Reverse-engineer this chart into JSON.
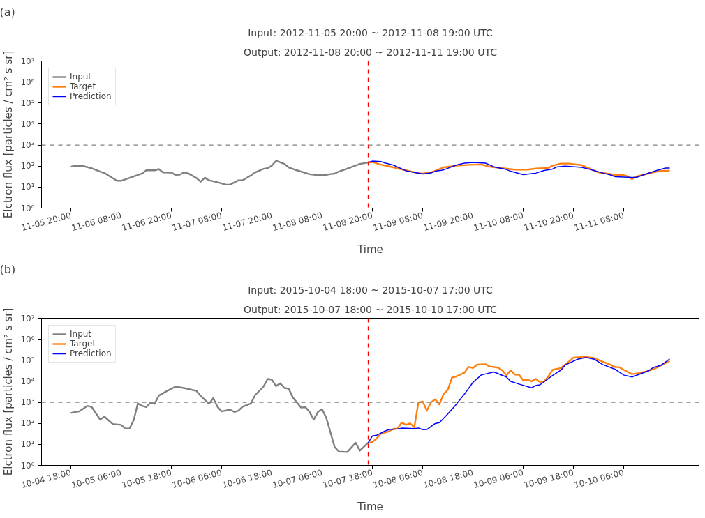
{
  "chart_data": [
    {
      "type": "line",
      "title": "Input: 2012-11-05 20:00 ~ 2012-11-08 19:00 UTC",
      "subtitle": "Output: 2012-11-08 20:00 ~ 2012-11-11 19:00 UTC",
      "xlabel": "Time",
      "ylabel": "Elctron flux [particles / cm² s sr]",
      "annotations": [
        "(a)"
      ],
      "log": "y",
      "legend": "top left",
      "grid": false,
      "line_style": "solid",
      "xlim": [
        "2012-11-05T13:00",
        "2012-11-12T02:00"
      ],
      "xticks": [
        {
          "value": "2012-11-05T20:00",
          "label": "11-05 20:00"
        },
        {
          "value": "2012-11-06T08:00",
          "label": "11-06 08:00"
        },
        {
          "value": "2012-11-06T20:00",
          "label": "11-06 20:00"
        },
        {
          "value": "2012-11-07T08:00",
          "label": "11-07 08:00"
        },
        {
          "value": "2012-11-07T20:00",
          "label": "11-07 20:00"
        },
        {
          "value": "2012-11-08T08:00",
          "label": "11-08 08:00"
        },
        {
          "value": "2012-11-08T20:00",
          "label": "11-08 20:00"
        },
        {
          "value": "2012-11-09T08:00",
          "label": "11-09 08:00"
        },
        {
          "value": "2012-11-09T20:00",
          "label": "11-09 20:00"
        },
        {
          "value": "2012-11-10T08:00",
          "label": "11-10 08:00"
        },
        {
          "value": "2012-11-10T20:00",
          "label": "11-10 20:00"
        },
        {
          "value": "2012-11-11T08:00",
          "label": "11-11 08:00"
        }
      ],
      "ylim": [
        1,
        10000000
      ],
      "yticks": [
        {
          "value": 1,
          "label": "10⁰"
        },
        {
          "value": 10,
          "label": "10¹"
        },
        {
          "value": 100,
          "label": "10²"
        },
        {
          "value": 1000,
          "label": "10³"
        },
        {
          "value": 10000,
          "label": "10⁴"
        },
        {
          "value": 100000,
          "label": "10⁵"
        },
        {
          "value": 1000000,
          "label": "10⁶"
        },
        {
          "value": 10000000,
          "label": "10⁷"
        }
      ],
      "ref_lines": [
        {
          "axis": "x",
          "value": "2012-11-08T19:00",
          "color": "#ff0000",
          "line_style": "dashed"
        },
        {
          "axis": "y",
          "value": 1000,
          "color": "#808080",
          "line_style": "dashed"
        }
      ],
      "series": [
        {
          "name": "Input",
          "color": "#808080",
          "x": [
            "2012-11-05T20:00",
            "2012-11-05T21:00",
            "2012-11-05T23:00",
            "2012-11-06T01:00",
            "2012-11-06T03:00",
            "2012-11-06T04:00",
            "2012-11-06T07:00",
            "2012-11-06T08:00",
            "2012-11-06T13:00",
            "2012-11-06T14:00",
            "2012-11-06T16:00",
            "2012-11-06T17:00",
            "2012-11-06T18:00",
            "2012-11-06T20:00",
            "2012-11-06T21:00",
            "2012-11-06T22:00",
            "2012-11-06T23:00",
            "2012-11-07T00:00",
            "2012-11-07T02:00",
            "2012-11-07T03:00",
            "2012-11-07T04:00",
            "2012-11-07T05:00",
            "2012-11-07T07:00",
            "2012-11-07T09:00",
            "2012-11-07T10:00",
            "2012-11-07T12:00",
            "2012-11-07T13:00",
            "2012-11-07T15:00",
            "2012-11-07T16:00",
            "2012-11-07T18:00",
            "2012-11-07T19:00",
            "2012-11-07T20:00",
            "2012-11-07T21:00",
            "2012-11-07T23:00",
            "2012-11-08T00:00",
            "2012-11-08T02:00",
            "2012-11-08T05:00",
            "2012-11-08T07:00",
            "2012-11-08T09:00",
            "2012-11-08T10:00",
            "2012-11-08T11:00",
            "2012-11-08T12:00",
            "2012-11-08T15:00",
            "2012-11-08T17:00",
            "2012-11-08T19:00"
          ],
          "values": [
            93,
            104,
            100,
            79,
            55,
            47,
            20,
            20,
            44,
            63,
            63,
            72,
            50,
            49,
            38,
            39,
            50,
            45,
            27,
            18,
            28,
            21,
            17,
            13,
            13,
            21,
            21,
            36,
            50,
            74,
            79,
            105,
            178,
            126,
            87,
            63,
            41,
            37,
            38,
            42,
            44,
            55,
            89,
            126,
            148
          ]
        },
        {
          "name": "Target",
          "color": "#ff7f0e",
          "x": [
            "2012-11-08T19:00",
            "2012-11-08T20:00",
            "2012-11-08T22:00",
            "2012-11-09T01:00",
            "2012-11-09T04:00",
            "2012-11-09T07:00",
            "2012-11-09T08:00",
            "2012-11-09T10:00",
            "2012-11-09T13:00",
            "2012-11-09T16:00",
            "2012-11-09T19:00",
            "2012-11-09T22:00",
            "2012-11-10T00:00",
            "2012-11-10T03:00",
            "2012-11-10T06:00",
            "2012-11-10T09:00",
            "2012-11-10T11:00",
            "2012-11-10T14:00",
            "2012-11-10T15:00",
            "2012-11-10T17:00",
            "2012-11-10T19:00",
            "2012-11-10T22:00",
            "2012-11-11T00:00",
            "2012-11-11T02:00",
            "2012-11-11T05:00",
            "2012-11-11T06:00",
            "2012-11-11T08:00",
            "2012-11-11T09:00",
            "2012-11-11T10:00",
            "2012-11-11T11:00",
            "2012-11-11T13:00",
            "2012-11-11T15:00",
            "2012-11-11T17:00",
            "2012-11-11T19:00"
          ],
          "values": [
            148,
            155,
            117,
            87,
            63,
            46,
            44,
            50,
            87,
            105,
            115,
            120,
            93,
            79,
            68,
            68,
            76,
            81,
            105,
            132,
            132,
            110,
            74,
            50,
            42,
            37,
            37,
            32,
            24,
            32,
            40,
            50,
            60,
            60
          ]
        },
        {
          "name": "Prediction",
          "color": "#0000ff",
          "x": [
            "2012-11-08T19:00",
            "2012-11-08T20:00",
            "2012-11-08T22:00",
            "2012-11-08T23:00",
            "2012-11-09T01:00",
            "2012-11-09T04:00",
            "2012-11-09T06:00",
            "2012-11-09T08:00",
            "2012-11-09T10:00",
            "2012-11-09T11:00",
            "2012-11-09T13:00",
            "2012-11-09T16:00",
            "2012-11-09T18:00",
            "2012-11-09T20:00",
            "2012-11-09T23:00",
            "2012-11-10T01:00",
            "2012-11-10T04:00",
            "2012-11-10T05:00",
            "2012-11-10T08:00",
            "2012-11-10T11:00",
            "2012-11-10T13:00",
            "2012-11-10T15:00",
            "2012-11-10T16:00",
            "2012-11-10T18:00",
            "2012-11-10T22:00",
            "2012-11-11T00:00",
            "2012-11-11T03:00",
            "2012-11-11T05:00",
            "2012-11-11T06:00",
            "2012-11-11T10:00",
            "2012-11-11T11:00",
            "2012-11-11T13:00",
            "2012-11-11T16:00",
            "2012-11-11T18:00",
            "2012-11-11T19:00"
          ],
          "values": [
            148,
            172,
            165,
            141,
            112,
            60,
            50,
            42,
            47,
            57,
            66,
            112,
            138,
            148,
            138,
            93,
            69,
            57,
            39,
            46,
            62,
            72,
            91,
            100,
            87,
            69,
            47,
            37,
            31,
            29,
            29,
            40,
            63,
            81,
            81
          ]
        }
      ]
    },
    {
      "type": "line",
      "title": "Input: 2015-10-04 18:00 ~ 2015-10-07 17:00 UTC",
      "subtitle": "Output: 2015-10-07 18:00 ~ 2015-10-10 17:00 UTC",
      "xlabel": "Time",
      "ylabel": "Elctron flux [particles / cm² s sr]",
      "annotations": [
        "(b)"
      ],
      "log": "y",
      "legend": "top left",
      "grid": false,
      "line_style": "solid",
      "xlim": [
        "2015-10-04T11:00",
        "2015-10-11T00:00"
      ],
      "xticks": [
        {
          "value": "2015-10-04T18:00",
          "label": "10-04 18:00"
        },
        {
          "value": "2015-10-05T06:00",
          "label": "10-05 06:00"
        },
        {
          "value": "2015-10-05T18:00",
          "label": "10-05 18:00"
        },
        {
          "value": "2015-10-06T06:00",
          "label": "10-06 06:00"
        },
        {
          "value": "2015-10-06T18:00",
          "label": "10-06 18:00"
        },
        {
          "value": "2015-10-07T06:00",
          "label": "10-07 06:00"
        },
        {
          "value": "2015-10-07T18:00",
          "label": "10-07 18:00"
        },
        {
          "value": "2015-10-08T06:00",
          "label": "10-08 06:00"
        },
        {
          "value": "2015-10-08T18:00",
          "label": "10-08 18:00"
        },
        {
          "value": "2015-10-09T06:00",
          "label": "10-09 06:00"
        },
        {
          "value": "2015-10-09T18:00",
          "label": "10-09 18:00"
        },
        {
          "value": "2015-10-10T06:00",
          "label": "10-10 06:00"
        }
      ],
      "ylim": [
        1,
        10000000
      ],
      "yticks": [
        {
          "value": 1,
          "label": "10⁰"
        },
        {
          "value": 10,
          "label": "10¹"
        },
        {
          "value": 100,
          "label": "10²"
        },
        {
          "value": 1000,
          "label": "10³"
        },
        {
          "value": 10000,
          "label": "10⁴"
        },
        {
          "value": 100000,
          "label": "10⁵"
        },
        {
          "value": 1000000,
          "label": "10⁶"
        },
        {
          "value": 10000000,
          "label": "10⁷"
        }
      ],
      "ref_lines": [
        {
          "axis": "x",
          "value": "2015-10-07T17:00",
          "color": "#ff0000",
          "line_style": "dashed"
        },
        {
          "axis": "y",
          "value": 1000,
          "color": "#808080",
          "line_style": "dashed"
        }
      ],
      "series": [
        {
          "name": "Input",
          "color": "#808080",
          "x": [
            "2015-10-04T18:00",
            "2015-10-04T19:00",
            "2015-10-04T20:00",
            "2015-10-04T22:00",
            "2015-10-04T23:00",
            "2015-10-05T01:00",
            "2015-10-05T02:00",
            "2015-10-05T04:00",
            "2015-10-05T06:00",
            "2015-10-05T07:00",
            "2015-10-05T08:00",
            "2015-10-05T09:00",
            "2015-10-05T10:00",
            "2015-10-05T11:00",
            "2015-10-05T12:00",
            "2015-10-05T13:00",
            "2015-10-05T14:00",
            "2015-10-05T15:00",
            "2015-10-05T17:00",
            "2015-10-05T19:00",
            "2015-10-05T21:00",
            "2015-10-06T00:00",
            "2015-10-06T01:00",
            "2015-10-06T03:00",
            "2015-10-06T04:00",
            "2015-10-06T05:00",
            "2015-10-06T06:00",
            "2015-10-06T08:00",
            "2015-10-06T09:00",
            "2015-10-06T10:00",
            "2015-10-06T11:00",
            "2015-10-06T13:00",
            "2015-10-06T14:00",
            "2015-10-06T16:00",
            "2015-10-06T17:00",
            "2015-10-06T18:00",
            "2015-10-06T19:00",
            "2015-10-06T20:00",
            "2015-10-06T21:00",
            "2015-10-06T22:00",
            "2015-10-06T23:00",
            "2015-10-07T01:00",
            "2015-10-07T02:00",
            "2015-10-07T03:00",
            "2015-10-07T04:00",
            "2015-10-07T05:00",
            "2015-10-07T06:00",
            "2015-10-07T07:00",
            "2015-10-07T09:00",
            "2015-10-07T10:00",
            "2015-10-07T12:00",
            "2015-10-07T14:00",
            "2015-10-07T15:00",
            "2015-10-07T17:00"
          ],
          "values": [
            310,
            350,
            370,
            680,
            590,
            150,
            210,
            93,
            85,
            56,
            56,
            140,
            890,
            680,
            590,
            950,
            850,
            2100,
            3500,
            5600,
            4800,
            3500,
            2000,
            850,
            1600,
            620,
            370,
            450,
            350,
            400,
            620,
            890,
            2200,
            5600,
            13000,
            12000,
            5900,
            8100,
            4800,
            4500,
            1700,
            560,
            590,
            350,
            150,
            350,
            470,
            180,
            7.4,
            4.5,
            4.3,
            12,
            5,
            12
          ]
        },
        {
          "name": "Target",
          "color": "#ff7f0e",
          "x": [
            "2015-10-07T17:00",
            "2015-10-07T18:00",
            "2015-10-07T19:00",
            "2015-10-07T20:00",
            "2015-10-07T22:00",
            "2015-10-07T23:00",
            "2015-10-08T00:00",
            "2015-10-08T01:00",
            "2015-10-08T02:00",
            "2015-10-08T03:00",
            "2015-10-08T04:00",
            "2015-10-08T05:00",
            "2015-10-08T06:00",
            "2015-10-08T07:00",
            "2015-10-08T08:00",
            "2015-10-08T09:00",
            "2015-10-08T10:00",
            "2015-10-08T11:00",
            "2015-10-08T12:00",
            "2015-10-08T13:00",
            "2015-10-08T14:00",
            "2015-10-08T16:00",
            "2015-10-08T17:00",
            "2015-10-08T18:00",
            "2015-10-08T19:00",
            "2015-10-08T21:00",
            "2015-10-08T22:00",
            "2015-10-09T00:00",
            "2015-10-09T01:00",
            "2015-10-09T02:00",
            "2015-10-09T03:00",
            "2015-10-09T04:00",
            "2015-10-09T05:00",
            "2015-10-09T06:00",
            "2015-10-09T07:00",
            "2015-10-09T08:00",
            "2015-10-09T09:00",
            "2015-10-09T10:00",
            "2015-10-09T11:00",
            "2015-10-09T12:00",
            "2015-10-09T13:00",
            "2015-10-09T15:00",
            "2015-10-09T16:00",
            "2015-10-09T17:00",
            "2015-10-09T18:00",
            "2015-10-09T21:00",
            "2015-10-09T23:00",
            "2015-10-10T01:00",
            "2015-10-10T03:00",
            "2015-10-10T04:00",
            "2015-10-10T05:00",
            "2015-10-10T06:00",
            "2015-10-10T08:00",
            "2015-10-10T10:00",
            "2015-10-10T12:00",
            "2015-10-10T14:00",
            "2015-10-10T15:00",
            "2015-10-10T17:00"
          ],
          "values": [
            12,
            13,
            19,
            32,
            42,
            54,
            56,
            110,
            85,
            100,
            65,
            1000,
            1100,
            400,
            1000,
            1400,
            790,
            2500,
            3900,
            15000,
            17000,
            26000,
            49000,
            43000,
            62000,
            65000,
            51000,
            45000,
            34000,
            19000,
            34000,
            21000,
            21000,
            11000,
            12000,
            10000,
            13000,
            9300,
            10000,
            17000,
            35000,
            43000,
            63000,
            89000,
            135000,
            148000,
            126000,
            85000,
            59000,
            47000,
            47000,
            35000,
            22000,
            25000,
            32000,
            45000,
            59000,
            93000
          ]
        },
        {
          "name": "Prediction",
          "color": "#0000ff",
          "x": [
            "2015-10-07T17:00",
            "2015-10-07T18:00",
            "2015-10-07T19:00",
            "2015-10-07T21:00",
            "2015-10-07T22:00",
            "2015-10-08T00:00",
            "2015-10-08T01:00",
            "2015-10-08T04:00",
            "2015-10-08T05:00",
            "2015-10-08T06:00",
            "2015-10-08T07:00",
            "2015-10-08T09:00",
            "2015-10-08T10:00",
            "2015-10-08T12:00",
            "2015-10-08T14:00",
            "2015-10-08T16:00",
            "2015-10-08T18:00",
            "2015-10-08T20:00",
            "2015-10-08T23:00",
            "2015-10-09T02:00",
            "2015-10-09T03:00",
            "2015-10-09T05:00",
            "2015-10-09T08:00",
            "2015-10-09T09:00",
            "2015-10-09T10:00",
            "2015-10-09T13:00",
            "2015-10-09T15:00",
            "2015-10-09T16:00",
            "2015-10-09T19:00",
            "2015-10-09T21:00",
            "2015-10-09T23:00",
            "2015-10-10T01:00",
            "2015-10-10T04:00",
            "2015-10-10T06:00",
            "2015-10-10T08:00",
            "2015-10-10T11:00",
            "2015-10-10T12:00",
            "2015-10-10T13:00",
            "2015-10-10T15:00",
            "2015-10-10T17:00"
          ],
          "values": [
            12,
            25,
            27,
            43,
            51,
            54,
            59,
            56,
            60,
            50,
            51,
            98,
            107,
            280,
            790,
            2500,
            8900,
            20000,
            28000,
            16000,
            10000,
            7400,
            4900,
            6300,
            6800,
            19000,
            34000,
            59000,
            112000,
            135000,
            112000,
            63000,
            37000,
            20000,
            16000,
            27000,
            32000,
            45000,
            59000,
            117000
          ]
        }
      ]
    }
  ]
}
